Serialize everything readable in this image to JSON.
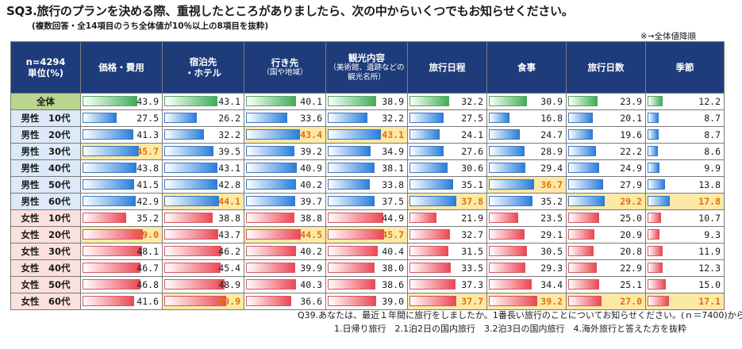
{
  "title": "SQ3.旅行のプランを決める際、重視したところがありましたら、次の中からいくつでもお知らせください。",
  "subtitle": "(複数回答・全14項目のうち全体値が10％以上の8項目を抜粋)",
  "sort_note": "※→全体値降順",
  "corner_header": {
    "line1": "n=4294",
    "line2": "単位(%)"
  },
  "footnote_line1": "Q39.あなたは、最近１年間に旅行をしましたか。1番長い旅行のことについてお知らせください。(ｎ＝7400)から",
  "footnote_line2": "1.日帰り旅行　2.1泊2日の国内旅行　3.2泊3日の国内旅行　4.海外旅行と答えた方を抜粋",
  "colors": {
    "header_bg": "#1f3c7a",
    "total_bar": "#3fae56",
    "male_bar": "#2a7fdc",
    "female_bar": "#ec4854",
    "highlight_bg": "#fde9a6",
    "highlight_text": "#e07010"
  },
  "chart_data": {
    "type": "table",
    "value_max": 50,
    "columns": [
      {
        "label": "価格・費用",
        "sub": ""
      },
      {
        "label": "宿泊先",
        "sub": "・ホテル"
      },
      {
        "label": "行き先",
        "sub": "（国や地域）"
      },
      {
        "label": "観光内容",
        "sub": "（美術館、遺跡などの観光名所）"
      },
      {
        "label": "旅行日程",
        "sub": ""
      },
      {
        "label": "食事",
        "sub": ""
      },
      {
        "label": "旅行日数",
        "sub": ""
      },
      {
        "label": "季節",
        "sub": ""
      }
    ],
    "rows": [
      {
        "label": "全体",
        "group": "total",
        "values": [
          "43.9",
          "43.1",
          "40.1",
          "38.9",
          "32.2",
          "30.9",
          "23.9",
          "12.2"
        ],
        "highlight": []
      },
      {
        "label": "男性　10代",
        "group": "male",
        "values": [
          "27.5",
          "26.2",
          "33.6",
          "32.2",
          "27.5",
          "16.8",
          "20.1",
          "8.7"
        ],
        "highlight": []
      },
      {
        "label": "男性　20代",
        "group": "male",
        "values": [
          "41.3",
          "32.2",
          "43.4",
          "43.1",
          "24.1",
          "24.7",
          "19.6",
          "8.7"
        ],
        "highlight": [
          2,
          3
        ]
      },
      {
        "label": "男性　30代",
        "group": "male",
        "values": [
          "45.7",
          "39.5",
          "39.2",
          "34.9",
          "27.6",
          "28.9",
          "22.2",
          "8.6"
        ],
        "highlight": [
          0
        ]
      },
      {
        "label": "男性　40代",
        "group": "male",
        "values": [
          "43.8",
          "43.1",
          "40.9",
          "38.1",
          "30.6",
          "29.4",
          "24.9",
          "9.9"
        ],
        "highlight": []
      },
      {
        "label": "男性　50代",
        "group": "male",
        "values": [
          "41.5",
          "42.8",
          "40.2",
          "33.8",
          "35.1",
          "36.7",
          "27.9",
          "13.8"
        ],
        "highlight": [
          5
        ]
      },
      {
        "label": "男性　60代",
        "group": "male",
        "values": [
          "42.9",
          "44.1",
          "39.7",
          "37.5",
          "37.8",
          "35.2",
          "29.2",
          "17.8"
        ],
        "highlight": [
          1,
          4,
          6,
          7
        ]
      },
      {
        "label": "女性　10代",
        "group": "female",
        "values": [
          "35.2",
          "38.8",
          "38.8",
          "44.9",
          "21.9",
          "23.5",
          "25.0",
          "10.7"
        ],
        "highlight": []
      },
      {
        "label": "女性　20代",
        "group": "female",
        "values": [
          "49.0",
          "43.7",
          "44.5",
          "45.7",
          "32.7",
          "29.1",
          "20.9",
          "9.3"
        ],
        "highlight": [
          0,
          2,
          3
        ]
      },
      {
        "label": "女性　30代",
        "group": "female",
        "values": [
          "48.1",
          "46.2",
          "40.2",
          "40.4",
          "31.5",
          "30.5",
          "20.8",
          "11.9"
        ],
        "highlight": []
      },
      {
        "label": "女性　40代",
        "group": "female",
        "values": [
          "46.7",
          "45.4",
          "39.9",
          "38.0",
          "33.5",
          "29.3",
          "22.9",
          "12.3"
        ],
        "highlight": []
      },
      {
        "label": "女性　50代",
        "group": "female",
        "values": [
          "46.8",
          "48.9",
          "40.3",
          "38.6",
          "37.3",
          "34.4",
          "25.1",
          "15.0"
        ],
        "highlight": []
      },
      {
        "label": "女性　60代",
        "group": "female",
        "values": [
          "41.6",
          "49.9",
          "36.6",
          "39.0",
          "37.7",
          "39.2",
          "27.0",
          "17.1"
        ],
        "highlight": [
          1,
          4,
          5,
          6,
          7
        ]
      }
    ]
  }
}
